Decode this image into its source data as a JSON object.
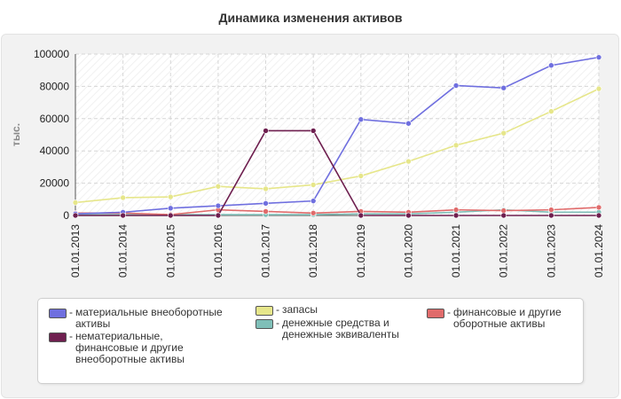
{
  "chart_data": {
    "type": "line",
    "title": "Динамика изменения активов",
    "ylabel": "тыс.",
    "xlabel": "",
    "ylim": [
      0,
      100000
    ],
    "yticks": [
      0,
      20000,
      40000,
      60000,
      80000,
      100000
    ],
    "grid": true,
    "legend_position": "bottom",
    "categories": [
      "01.01.2013",
      "01.01.2014",
      "01.01.2015",
      "01.01.2016",
      "01.01.2017",
      "01.01.2018",
      "01.01.2019",
      "01.01.2020",
      "01.01.2021",
      "01.01.2022",
      "01.01.2023",
      "01.01.2024"
    ],
    "series": [
      {
        "name": "материальные внеоборотные активы",
        "color": "#6f6fdf",
        "values": [
          1000,
          2000,
          4500,
          6000,
          7500,
          9000,
          59500,
          57000,
          80500,
          79000,
          93000,
          98000
        ]
      },
      {
        "name": "запасы",
        "color": "#e6e68a",
        "values": [
          8000,
          11000,
          11500,
          18000,
          16500,
          19000,
          24500,
          33500,
          43500,
          51000,
          64500,
          78500
        ]
      },
      {
        "name": "финансовые и другие оборотные активы",
        "color": "#e06b6b",
        "values": [
          1500,
          1500,
          500,
          3500,
          2500,
          1500,
          2500,
          2000,
          3500,
          3000,
          3500,
          5000
        ]
      },
      {
        "name": "нематериальные, финансовые и другие внеоборотные активы",
        "color": "#6e1f4f",
        "values": [
          0,
          0,
          0,
          0,
          52500,
          52500,
          0,
          0,
          0,
          0,
          0,
          0
        ]
      },
      {
        "name": "денежные средства и денежные эквиваленты",
        "color": "#7fbfb8",
        "values": [
          500,
          500,
          500,
          500,
          500,
          500,
          1000,
          1000,
          2000,
          3500,
          2000,
          2000
        ]
      }
    ]
  },
  "legend": [
    {
      "label": "материальные внеоборотные активы",
      "color": "#6f6fdf"
    },
    {
      "label": "нематериальные, финансовые и другие внеоборотные активы",
      "color": "#6e1f4f"
    },
    {
      "label": "запасы",
      "color": "#e6e68a"
    },
    {
      "label": "денежные средства и денежные эквиваленты",
      "color": "#7fbfb8"
    },
    {
      "label": "финансовые и другие оборотные активы",
      "color": "#e06b6b"
    }
  ]
}
